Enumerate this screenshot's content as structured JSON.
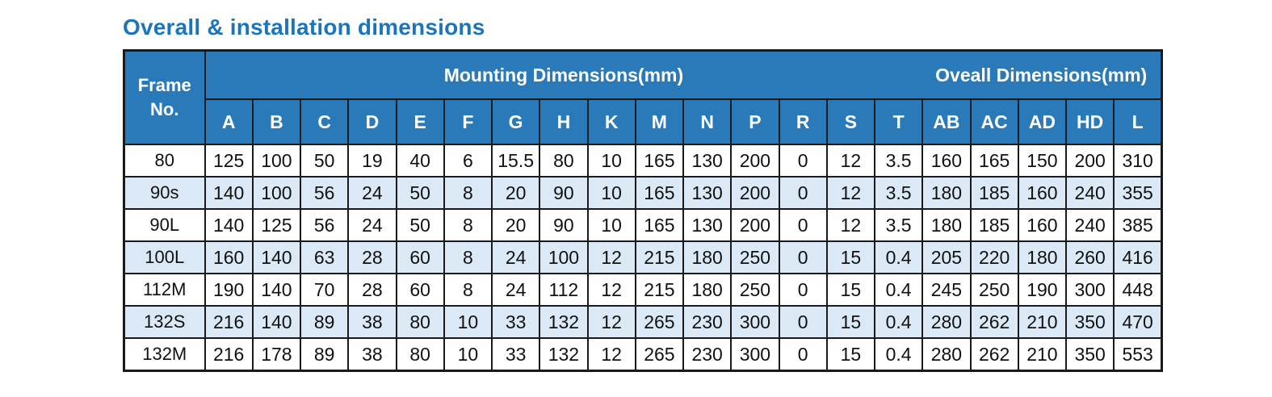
{
  "page": {
    "title": "Overall & installation dimensions"
  },
  "table": {
    "frame_header": "Frame No.",
    "group_headers": [
      {
        "label": "Mounting Dimensions(mm)",
        "colspan": 15
      },
      {
        "label": "Oveall Dimensions(mm)",
        "colspan": 5
      }
    ],
    "columns": [
      "A",
      "B",
      "C",
      "D",
      "E",
      "F",
      "G",
      "H",
      "K",
      "M",
      "N",
      "P",
      "R",
      "S",
      "T",
      "AB",
      "AC",
      "AD",
      "HD",
      "L"
    ],
    "rows": [
      {
        "frame": "80",
        "values": [
          "125",
          "100",
          "50",
          "19",
          "40",
          "6",
          "15.5",
          "80",
          "10",
          "165",
          "130",
          "200",
          "0",
          "12",
          "3.5",
          "160",
          "165",
          "150",
          "200",
          "310"
        ]
      },
      {
        "frame": "90s",
        "values": [
          "140",
          "100",
          "56",
          "24",
          "50",
          "8",
          "20",
          "90",
          "10",
          "165",
          "130",
          "200",
          "0",
          "12",
          "3.5",
          "180",
          "185",
          "160",
          "240",
          "355"
        ]
      },
      {
        "frame": "90L",
        "values": [
          "140",
          "125",
          "56",
          "24",
          "50",
          "8",
          "20",
          "90",
          "10",
          "165",
          "130",
          "200",
          "0",
          "12",
          "3.5",
          "180",
          "185",
          "160",
          "240",
          "385"
        ]
      },
      {
        "frame": "100L",
        "values": [
          "160",
          "140",
          "63",
          "28",
          "60",
          "8",
          "24",
          "100",
          "12",
          "215",
          "180",
          "250",
          "0",
          "15",
          "0.4",
          "205",
          "220",
          "180",
          "260",
          "416"
        ]
      },
      {
        "frame": "112M",
        "values": [
          "190",
          "140",
          "70",
          "28",
          "60",
          "8",
          "24",
          "112",
          "12",
          "215",
          "180",
          "250",
          "0",
          "15",
          "0.4",
          "245",
          "250",
          "190",
          "300",
          "448"
        ]
      },
      {
        "frame": "132S",
        "values": [
          "216",
          "140",
          "89",
          "38",
          "80",
          "10",
          "33",
          "132",
          "12",
          "265",
          "230",
          "300",
          "0",
          "15",
          "0.4",
          "280",
          "262",
          "210",
          "350",
          "470"
        ]
      },
      {
        "frame": "132M",
        "values": [
          "216",
          "178",
          "89",
          "38",
          "80",
          "10",
          "33",
          "132",
          "12",
          "265",
          "230",
          "300",
          "0",
          "15",
          "0.4",
          "280",
          "262",
          "210",
          "350",
          "553"
        ]
      }
    ]
  },
  "colors": {
    "header_bg": "#2A79B8",
    "row_alt_bg": "#DBE9F6",
    "title": "#1B75BC",
    "border": "#1A1A1A",
    "header_text": "#FFFFFF",
    "cell_text": "#111111"
  }
}
